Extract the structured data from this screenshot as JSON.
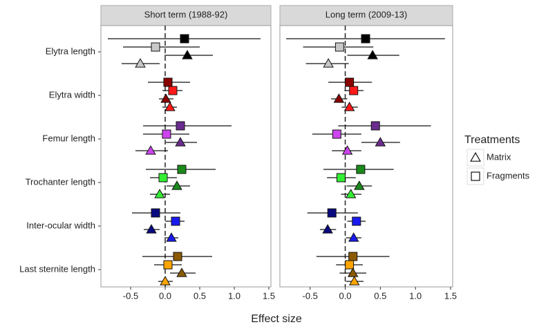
{
  "chart_data": {
    "type": "forest",
    "xlabel": "Effect size",
    "categories": [
      "Elytra length",
      "Elytra width",
      "Femur length",
      "Trochanter length",
      "Inter-ocular width",
      "Last sternite length"
    ],
    "xlim": [
      -0.93,
      1.53
    ],
    "xticks": [
      -0.5,
      {
        "value": 0,
        "label": "0.0"
      },
      0.5,
      {
        "value": 1,
        "label": "1.0"
      },
      1.5
    ],
    "reference_line": 0,
    "legend_title": "Treatments",
    "legend": [
      {
        "label": "Matrix",
        "shape": "triangle"
      },
      {
        "label": "Fragments",
        "shape": "square"
      }
    ],
    "panels": [
      {
        "title": "Short term (1988-92)",
        "series": [
          {
            "shape": "square",
            "colors": [
              "#000000",
              "#8b0000",
              "#6a2c8e",
              "#1a8a1a",
              "#0a0a80",
              "#8b5a00"
            ],
            "values": [
              0.28,
              0.04,
              0.22,
              0.24,
              -0.14,
              0.18
            ],
            "lower": [
              -0.83,
              -0.25,
              -0.32,
              -0.28,
              -0.48,
              -0.33
            ],
            "upper": [
              1.38,
              0.36,
              0.96,
              0.73,
              0.22,
              0.68
            ]
          },
          {
            "shape": "square",
            "colors": [
              "#c8c8c8",
              "#ff1a1a",
              "#cc44ee",
              "#33ee33",
              "#1a1aee",
              "#ffa500"
            ],
            "values": [
              -0.14,
              0.11,
              0.02,
              -0.03,
              0.15,
              0.04
            ],
            "lower": [
              -0.61,
              -0.04,
              -0.32,
              -0.22,
              0,
              -0.16
            ],
            "upper": [
              0.5,
              0.25,
              0.35,
              0.17,
              0.28,
              0.24
            ]
          },
          {
            "shape": "triangle",
            "colors": [
              "#000000",
              "#8b0000",
              "#6a2c8e",
              "#1a8a1a",
              "#0a0a80",
              "#8b5a00"
            ],
            "values": [
              0.32,
              0.01,
              0.22,
              0.17,
              -0.2,
              0.24
            ],
            "lower": [
              -0.01,
              -0.09,
              0.01,
              0.02,
              -0.31,
              0.07
            ],
            "upper": [
              0.69,
              0.12,
              0.46,
              0.36,
              -0.08,
              0.44
            ]
          },
          {
            "shape": "triangle",
            "colors": [
              "#c8c8c8",
              "#ff1a1a",
              "#cc44ee",
              "#33ee33",
              "#1a1aee",
              "#ffa500"
            ],
            "values": [
              -0.36,
              0.07,
              -0.21,
              -0.08,
              0.09,
              0
            ],
            "lower": [
              -0.63,
              -0.04,
              -0.43,
              -0.22,
              -0.01,
              -0.1
            ],
            "upper": [
              -0.08,
              0.17,
              0.04,
              0.07,
              0.19,
              0.11
            ]
          }
        ]
      },
      {
        "title": "Long term (2009-13)",
        "series": [
          {
            "shape": "square",
            "colors": [
              "#000000",
              "#8b0000",
              "#6a2c8e",
              "#1a8a1a",
              "#0a0a80",
              "#8b5a00"
            ],
            "values": [
              0.29,
              0.06,
              0.43,
              0.22,
              -0.19,
              0.11
            ],
            "lower": [
              -0.84,
              -0.24,
              -0.1,
              -0.31,
              -0.54,
              -0.41
            ],
            "upper": [
              1.42,
              0.38,
              1.22,
              0.69,
              0.18,
              0.63
            ]
          },
          {
            "shape": "square",
            "colors": [
              "#c8c8c8",
              "#ff1a1a",
              "#cc44ee",
              "#33ee33",
              "#1a1aee",
              "#ffa500"
            ],
            "values": [
              -0.08,
              0.12,
              -0.12,
              -0.06,
              0.16,
              0.06
            ],
            "lower": [
              -0.6,
              -0.01,
              -0.47,
              -0.26,
              0.03,
              -0.13
            ],
            "upper": [
              0.4,
              0.26,
              0.23,
              0.15,
              0.29,
              0.25
            ]
          },
          {
            "shape": "triangle",
            "colors": [
              "#000000",
              "#8b0000",
              "#6a2c8e",
              "#1a8a1a",
              "#0a0a80",
              "#8b5a00"
            ],
            "values": [
              0.39,
              -0.09,
              0.5,
              0.2,
              -0.25,
              0.11
            ],
            "lower": [
              0.03,
              -0.2,
              0.23,
              0.02,
              -0.36,
              -0.08
            ],
            "upper": [
              0.77,
              0.03,
              0.78,
              0.38,
              -0.13,
              0.3
            ]
          },
          {
            "shape": "triangle",
            "colors": [
              "#c8c8c8",
              "#ff1a1a",
              "#cc44ee",
              "#33ee33",
              "#1a1aee",
              "#ffa500"
            ],
            "values": [
              -0.24,
              0.06,
              0.03,
              0.08,
              0.12,
              0.13
            ],
            "lower": [
              -0.56,
              -0.05,
              -0.19,
              -0.06,
              0.01,
              0.01
            ],
            "upper": [
              0.05,
              0.18,
              0.23,
              0.23,
              0.23,
              0.26
            ]
          }
        ]
      }
    ]
  }
}
